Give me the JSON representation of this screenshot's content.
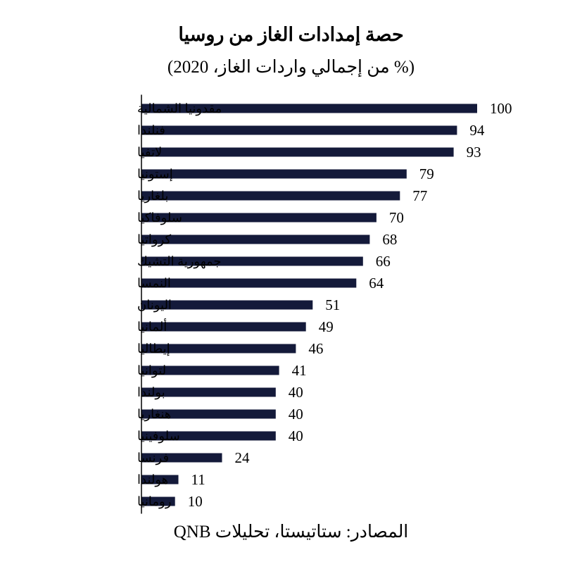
{
  "chart_data": {
    "type": "bar",
    "orientation": "horizontal",
    "title": "حصة إمدادات الغاز من روسيا",
    "subtitle": "(% من إجمالي واردات الغاز، 2020)",
    "source": "المصادر: ستاتيستا، تحليلات QNB",
    "categories": [
      "مقدونيا الشمالية",
      "فنلندا",
      "لاتفيا",
      "إستونيا",
      "بلغاريا",
      "سلوفاكيا",
      "كرواتيا",
      "جمهورية التشيك",
      "النمسا",
      "اليونان",
      "ألمانيا",
      "إيطاليا",
      "لتوانيا",
      "بولندا",
      "هنغاريا",
      "سلوفينيا",
      "فرنسا",
      "هولندا",
      "رومانيا"
    ],
    "values": [
      100,
      94,
      93,
      79,
      77,
      70,
      68,
      66,
      64,
      51,
      49,
      46,
      41,
      40,
      40,
      40,
      24,
      11,
      10
    ],
    "xlim": [
      0,
      100
    ],
    "grid": false,
    "legend": "none",
    "bar_color": "#141a3a",
    "axis_color": "#000000"
  }
}
